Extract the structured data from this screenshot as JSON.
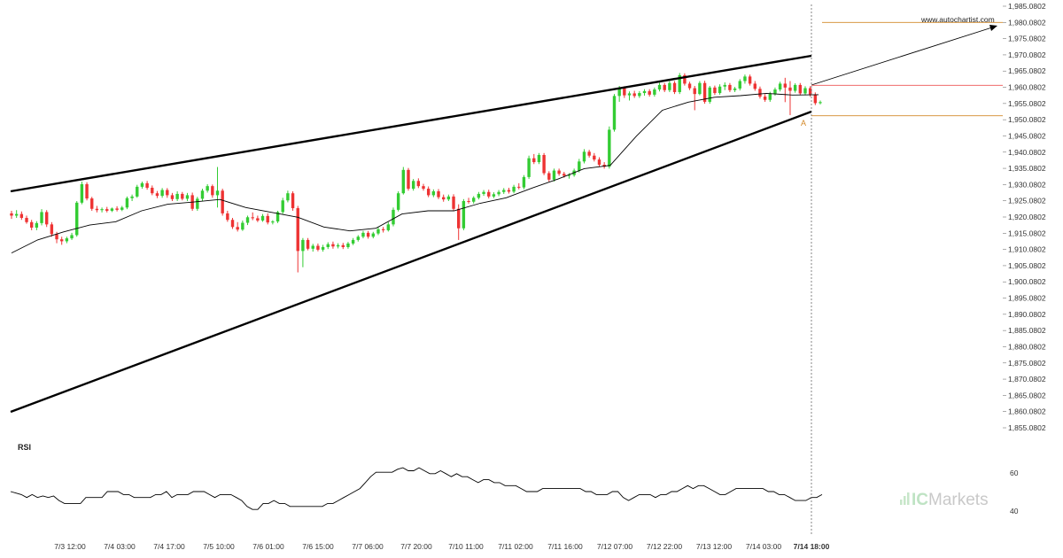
{
  "watermark": "www.autochartist.com",
  "brand": {
    "prefix": "IC",
    "name": "Markets"
  },
  "colors": {
    "up": "#33cc33",
    "down": "#ee3333",
    "line": "#000000",
    "orange": "#d38a2a",
    "red_level": "#ee5555",
    "logo": "#c9c9c9"
  },
  "chart_data": {
    "type": "candlestick",
    "y_ticks": [
      "1,985.0802",
      "1,980.0802",
      "1,975.0802",
      "1,970.0802",
      "1,965.0802",
      "1,960.0802",
      "1,955.0802",
      "1,950.0802",
      "1,945.0802",
      "1,940.0802",
      "1,935.0802",
      "1,930.0802",
      "1,925.0802",
      "1,920.0802",
      "1,915.0802",
      "1,910.0802",
      "1,905.0802",
      "1,900.0802",
      "1,895.0802",
      "1,890.0802",
      "1,885.0802",
      "1,880.0802",
      "1,875.0802",
      "1,870.0802",
      "1,865.0802",
      "1,860.0802",
      "1,855.0802"
    ],
    "ylim": [
      1855.0802,
      1985.0802
    ],
    "x_ticks": [
      "7/3 12:00",
      "7/4 03:00",
      "7/4 17:00",
      "7/5 10:00",
      "7/6 01:00",
      "7/6 15:00",
      "7/7 06:00",
      "7/7 20:00",
      "7/10 11:00",
      "7/11 02:00",
      "7/11 16:00",
      "7/12 07:00",
      "7/12 22:00",
      "7/13 12:00",
      "7/14 03:00",
      "7/14 18:00"
    ],
    "ohlc": [
      [
        1921.2,
        1922.0,
        1919.5,
        1920.5
      ],
      [
        1920.5,
        1922.2,
        1919.8,
        1921.0
      ],
      [
        1921.0,
        1921.8,
        1919.2,
        1919.8
      ],
      [
        1919.8,
        1920.5,
        1918.0,
        1918.5
      ],
      [
        1918.5,
        1919.2,
        1916.0,
        1916.8
      ],
      [
        1916.8,
        1918.8,
        1916.0,
        1918.2
      ],
      [
        1918.2,
        1922.5,
        1917.5,
        1921.6
      ],
      [
        1921.6,
        1922.2,
        1917.0,
        1917.8
      ],
      [
        1917.8,
        1918.5,
        1914.0,
        1914.8
      ],
      [
        1914.8,
        1915.5,
        1912.0,
        1913.2
      ],
      [
        1913.2,
        1914.0,
        1911.5,
        1912.6
      ],
      [
        1912.6,
        1914.0,
        1912.0,
        1913.5
      ],
      [
        1913.5,
        1915.2,
        1913.0,
        1914.5
      ],
      [
        1914.5,
        1925.0,
        1914.0,
        1924.5
      ],
      [
        1924.5,
        1931.0,
        1924.0,
        1930.2
      ],
      [
        1930.2,
        1930.8,
        1925.2,
        1925.8
      ],
      [
        1925.8,
        1926.3,
        1922.0,
        1922.6
      ],
      [
        1922.6,
        1923.5,
        1921.5,
        1922.2
      ],
      [
        1922.2,
        1923.0,
        1921.5,
        1922.5
      ],
      [
        1922.5,
        1923.2,
        1921.5,
        1922.0
      ],
      [
        1922.0,
        1923.0,
        1921.6,
        1922.7
      ],
      [
        1922.7,
        1923.4,
        1921.8,
        1922.3
      ],
      [
        1922.3,
        1923.5,
        1921.9,
        1923.0
      ],
      [
        1923.0,
        1926.4,
        1922.5,
        1925.9
      ],
      [
        1925.9,
        1927.0,
        1925.0,
        1926.4
      ],
      [
        1926.4,
        1930.0,
        1926.0,
        1929.4
      ],
      [
        1929.4,
        1931.0,
        1928.8,
        1930.5
      ],
      [
        1930.5,
        1931.2,
        1928.5,
        1929.1
      ],
      [
        1929.1,
        1929.8,
        1926.8,
        1927.4
      ],
      [
        1927.4,
        1928.1,
        1925.9,
        1926.6
      ],
      [
        1926.6,
        1929.0,
        1926.0,
        1928.4
      ],
      [
        1928.4,
        1929.0,
        1926.0,
        1926.8
      ],
      [
        1926.8,
        1927.5,
        1925.0,
        1925.6
      ],
      [
        1925.6,
        1928.0,
        1925.0,
        1927.2
      ],
      [
        1927.2,
        1927.8,
        1925.2,
        1925.7
      ],
      [
        1925.7,
        1927.5,
        1925.0,
        1926.8
      ],
      [
        1926.8,
        1927.6,
        1922.0,
        1922.6
      ],
      [
        1922.6,
        1926.3,
        1922.0,
        1925.7
      ],
      [
        1925.7,
        1928.8,
        1925.0,
        1928.2
      ],
      [
        1928.2,
        1930.2,
        1927.6,
        1929.6
      ],
      [
        1929.6,
        1930.1,
        1926.0,
        1926.8
      ],
      [
        1926.8,
        1935.5,
        1923.0,
        1928.2
      ],
      [
        1928.2,
        1928.8,
        1920.5,
        1921.2
      ],
      [
        1921.2,
        1922.0,
        1918.6,
        1919.2
      ],
      [
        1919.2,
        1919.8,
        1916.4,
        1917.0
      ],
      [
        1917.0,
        1918.5,
        1915.6,
        1916.2
      ],
      [
        1916.2,
        1919.0,
        1915.8,
        1918.3
      ],
      [
        1918.3,
        1920.5,
        1917.6,
        1920.0
      ],
      [
        1920.0,
        1921.5,
        1919.1,
        1919.7
      ],
      [
        1919.7,
        1920.5,
        1918.5,
        1919.0
      ],
      [
        1919.0,
        1921.0,
        1918.6,
        1920.4
      ],
      [
        1920.4,
        1921.2,
        1917.8,
        1918.4
      ],
      [
        1918.4,
        1919.1,
        1917.8,
        1918.7
      ],
      [
        1918.7,
        1922.0,
        1918.2,
        1921.6
      ],
      [
        1921.6,
        1926.0,
        1921.0,
        1925.2
      ],
      [
        1925.2,
        1928.2,
        1924.6,
        1927.4
      ],
      [
        1927.4,
        1928.0,
        1922.0,
        1922.8
      ],
      [
        1922.8,
        1923.5,
        1903.0,
        1909.6
      ],
      [
        1909.6,
        1913.6,
        1904.6,
        1913.0
      ],
      [
        1913.0,
        1913.6,
        1909.8,
        1910.3
      ],
      [
        1910.3,
        1911.8,
        1909.4,
        1911.2
      ],
      [
        1911.2,
        1911.9,
        1909.5,
        1910.0
      ],
      [
        1910.0,
        1911.5,
        1909.4,
        1910.8
      ],
      [
        1910.8,
        1912.3,
        1910.2,
        1911.7
      ],
      [
        1911.7,
        1912.5,
        1910.3,
        1911.0
      ],
      [
        1911.0,
        1912.0,
        1910.4,
        1911.4
      ],
      [
        1911.4,
        1912.1,
        1910.2,
        1910.8
      ],
      [
        1910.8,
        1912.4,
        1910.3,
        1911.9
      ],
      [
        1911.9,
        1913.6,
        1911.4,
        1913.0
      ],
      [
        1913.0,
        1914.5,
        1912.5,
        1914.0
      ],
      [
        1914.0,
        1915.8,
        1913.5,
        1915.2
      ],
      [
        1915.2,
        1915.8,
        1913.4,
        1914.0
      ],
      [
        1914.0,
        1915.5,
        1913.5,
        1915.0
      ],
      [
        1915.0,
        1916.9,
        1914.5,
        1916.3
      ],
      [
        1916.3,
        1917.0,
        1915.3,
        1916.0
      ],
      [
        1916.0,
        1918.5,
        1915.6,
        1917.8
      ],
      [
        1917.8,
        1923.0,
        1917.2,
        1922.3
      ],
      [
        1922.3,
        1928.0,
        1921.8,
        1927.4
      ],
      [
        1927.4,
        1935.5,
        1927.0,
        1934.6
      ],
      [
        1934.6,
        1935.2,
        1928.2,
        1928.8
      ],
      [
        1928.8,
        1931.8,
        1928.2,
        1931.2
      ],
      [
        1931.2,
        1932.0,
        1929.0,
        1929.6
      ],
      [
        1929.6,
        1930.3,
        1928.2,
        1928.8
      ],
      [
        1928.8,
        1929.5,
        1926.2,
        1926.8
      ],
      [
        1926.8,
        1928.6,
        1926.2,
        1928.0
      ],
      [
        1928.0,
        1928.7,
        1925.6,
        1926.2
      ],
      [
        1926.2,
        1927.0,
        1924.8,
        1925.5
      ],
      [
        1925.5,
        1927.0,
        1925.0,
        1926.4
      ],
      [
        1926.4,
        1927.1,
        1922.0,
        1922.6
      ],
      [
        1922.6,
        1924.0,
        1913.0,
        1916.6
      ],
      [
        1916.6,
        1925.6,
        1916.0,
        1925.0
      ],
      [
        1925.0,
        1926.0,
        1924.2,
        1924.8
      ],
      [
        1924.8,
        1926.5,
        1924.2,
        1926.0
      ],
      [
        1926.0,
        1927.8,
        1925.5,
        1927.2
      ],
      [
        1927.2,
        1928.4,
        1926.6,
        1927.8
      ],
      [
        1927.8,
        1928.5,
        1925.8,
        1926.4
      ],
      [
        1926.4,
        1927.7,
        1925.9,
        1927.1
      ],
      [
        1927.1,
        1928.4,
        1926.5,
        1927.8
      ],
      [
        1927.8,
        1929.0,
        1927.2,
        1928.4
      ],
      [
        1928.4,
        1929.1,
        1927.3,
        1927.9
      ],
      [
        1927.9,
        1930.0,
        1927.4,
        1929.4
      ],
      [
        1929.4,
        1930.5,
        1928.6,
        1929.2
      ],
      [
        1929.2,
        1933.0,
        1928.6,
        1932.4
      ],
      [
        1932.4,
        1939.0,
        1931.8,
        1938.2
      ],
      [
        1938.2,
        1939.5,
        1936.4,
        1937.0
      ],
      [
        1937.0,
        1939.8,
        1936.4,
        1939.2
      ],
      [
        1939.2,
        1939.8,
        1933.0,
        1933.6
      ],
      [
        1933.6,
        1934.2,
        1931.0,
        1931.6
      ],
      [
        1931.6,
        1935.0,
        1931.0,
        1934.4
      ],
      [
        1934.4,
        1935.0,
        1932.8,
        1933.4
      ],
      [
        1933.4,
        1934.0,
        1932.2,
        1932.8
      ],
      [
        1932.8,
        1933.6,
        1931.9,
        1933.0
      ],
      [
        1933.0,
        1935.0,
        1932.5,
        1934.4
      ],
      [
        1934.4,
        1938.0,
        1933.8,
        1937.2
      ],
      [
        1937.2,
        1941.0,
        1936.6,
        1940.2
      ],
      [
        1940.2,
        1940.8,
        1938.4,
        1939.0
      ],
      [
        1939.0,
        1939.8,
        1937.2,
        1937.8
      ],
      [
        1937.8,
        1938.5,
        1935.6,
        1936.2
      ],
      [
        1936.2,
        1937.0,
        1935.0,
        1935.6
      ],
      [
        1935.6,
        1948.0,
        1935.0,
        1947.0
      ],
      [
        1947.0,
        1958.0,
        1946.4,
        1957.4
      ],
      [
        1957.4,
        1960.5,
        1955.6,
        1959.8
      ],
      [
        1959.8,
        1960.4,
        1956.8,
        1957.6
      ],
      [
        1957.6,
        1958.8,
        1956.0,
        1958.2
      ],
      [
        1958.2,
        1959.0,
        1956.8,
        1957.4
      ],
      [
        1957.4,
        1958.9,
        1956.8,
        1958.3
      ],
      [
        1958.3,
        1959.5,
        1957.5,
        1958.9
      ],
      [
        1958.9,
        1959.5,
        1957.2,
        1957.8
      ],
      [
        1957.8,
        1960.0,
        1957.2,
        1959.4
      ],
      [
        1959.4,
        1961.5,
        1958.8,
        1960.8
      ],
      [
        1960.8,
        1961.4,
        1958.6,
        1959.2
      ],
      [
        1959.2,
        1962.0,
        1958.6,
        1961.4
      ],
      [
        1961.4,
        1962.0,
        1958.0,
        1958.6
      ],
      [
        1958.6,
        1964.5,
        1958.0,
        1963.8
      ],
      [
        1963.8,
        1964.4,
        1960.6,
        1961.2
      ],
      [
        1961.2,
        1961.8,
        1959.2,
        1959.8
      ],
      [
        1959.8,
        1960.5,
        1953.0,
        1958.0
      ],
      [
        1958.0,
        1962.0,
        1957.6,
        1961.4
      ],
      [
        1961.4,
        1962.1,
        1955.0,
        1955.6
      ],
      [
        1955.6,
        1960.5,
        1955.0,
        1960.0
      ],
      [
        1960.0,
        1960.6,
        1957.7,
        1958.3
      ],
      [
        1958.3,
        1961.0,
        1957.8,
        1960.3
      ],
      [
        1960.3,
        1961.6,
        1959.2,
        1960.8
      ],
      [
        1960.8,
        1961.4,
        1958.6,
        1959.2
      ],
      [
        1959.2,
        1960.2,
        1958.6,
        1959.7
      ],
      [
        1959.7,
        1962.6,
        1959.1,
        1962.0
      ],
      [
        1962.0,
        1964.0,
        1961.2,
        1963.4
      ],
      [
        1963.4,
        1964.0,
        1960.6,
        1961.2
      ],
      [
        1961.2,
        1962.0,
        1959.0,
        1959.6
      ],
      [
        1959.6,
        1960.3,
        1956.6,
        1957.2
      ],
      [
        1957.2,
        1958.0,
        1955.6,
        1956.2
      ],
      [
        1956.2,
        1958.7,
        1955.6,
        1958.1
      ],
      [
        1958.1,
        1960.0,
        1957.5,
        1959.4
      ],
      [
        1959.4,
        1961.8,
        1958.8,
        1961.2
      ],
      [
        1961.2,
        1963.0,
        1955.5,
        1960.0
      ],
      [
        1960.0,
        1962.0,
        1951.5,
        1959.0
      ],
      [
        1959.0,
        1961.3,
        1958.4,
        1960.8
      ],
      [
        1960.8,
        1961.4,
        1957.6,
        1958.2
      ],
      [
        1958.2,
        1960.4,
        1957.6,
        1959.8
      ],
      [
        1959.8,
        1960.4,
        1957.2,
        1957.9
      ],
      [
        1957.9,
        1958.5,
        1954.6,
        1955.2
      ],
      [
        1955.2,
        1956.0,
        1954.8,
        1955.5
      ]
    ],
    "moving_average": [
      [
        "7/3 12:00",
        1909.0
      ],
      [
        "7/3 12:00",
        1913.0
      ],
      [
        "7/3 12:00",
        1915.5
      ],
      [
        "7/4 03:00",
        1917.6
      ],
      [
        "7/4 03:00",
        1918.6
      ],
      [
        "7/4 17:00",
        1922.0
      ],
      [
        "7/4 17:00",
        1924.0
      ],
      [
        "7/5 10:00",
        1924.7
      ],
      [
        "7/5 10:00",
        1925.5
      ],
      [
        "7/6 01:00",
        1923.0
      ],
      [
        "7/6 01:00",
        1921.5
      ],
      [
        "7/6 15:00",
        1920.0
      ],
      [
        "7/6 15:00",
        1917.0
      ],
      [
        "7/7 06:00",
        1915.8
      ],
      [
        "7/7 06:00",
        1916.6
      ],
      [
        "7/7 20:00",
        1921.0
      ],
      [
        "7/7 20:00",
        1922.0
      ],
      [
        "7/10 11:00",
        1922.0
      ],
      [
        "7/10 11:00",
        1924.3
      ],
      [
        "7/11 02:00",
        1926.0
      ],
      [
        "7/11 02:00",
        1929.0
      ],
      [
        "7/11 16:00",
        1931.8
      ],
      [
        "7/11 16:00",
        1935.0
      ],
      [
        "7/12 07:00",
        1936.0
      ],
      [
        "7/12 07:00",
        1945.0
      ],
      [
        "7/12 22:00",
        1953.0
      ],
      [
        "7/12 22:00",
        1955.5
      ],
      [
        "7/13 12:00",
        1957.0
      ],
      [
        "7/13 12:00",
        1957.5
      ],
      [
        "7/14 03:00",
        1958.2
      ],
      [
        "7/14 03:00",
        1957.7
      ],
      [
        "7/14 18:00",
        1957.8
      ]
    ],
    "levels": [
      {
        "name": "target",
        "value": 1980.0802
      },
      {
        "name": "resistance",
        "value": 1960.7
      },
      {
        "name": "support",
        "value": 1951.3
      }
    ],
    "pattern_point_label": "A",
    "rsi": {
      "label": "RSI",
      "y_ticks": [
        "60",
        "40"
      ],
      "ylim": [
        30,
        80
      ],
      "values": [
        55,
        54,
        53,
        51,
        53,
        51,
        52,
        51,
        52,
        49,
        47,
        47,
        47,
        47,
        51,
        51,
        51,
        51,
        55,
        55,
        55,
        53,
        53,
        51,
        51,
        51,
        51,
        53,
        53,
        55,
        51,
        53,
        53,
        53,
        55,
        55,
        55,
        53,
        51,
        53,
        53,
        53,
        51,
        49,
        45,
        43,
        43,
        47,
        47,
        49,
        47,
        47,
        45,
        45,
        45,
        45,
        45,
        45,
        45,
        47,
        47,
        49,
        51,
        53,
        55,
        57,
        61,
        65,
        68,
        68,
        68,
        68,
        70,
        71,
        69,
        69,
        71,
        69,
        67,
        67,
        69,
        67,
        65,
        67,
        65,
        65,
        63,
        61,
        63,
        63,
        61,
        61,
        59,
        59,
        59,
        57,
        55,
        55,
        55,
        57,
        57,
        57,
        57,
        57,
        57,
        57,
        57,
        55,
        55,
        53,
        53,
        53,
        55,
        55,
        51,
        49,
        51,
        53,
        53,
        53,
        51,
        53,
        53,
        55,
        55,
        57,
        59,
        57,
        59,
        59,
        57,
        55,
        53,
        53,
        55,
        57,
        57,
        57,
        57,
        57,
        57,
        55,
        55,
        53,
        53,
        51,
        49,
        49,
        49,
        51,
        51,
        53
      ]
    }
  }
}
